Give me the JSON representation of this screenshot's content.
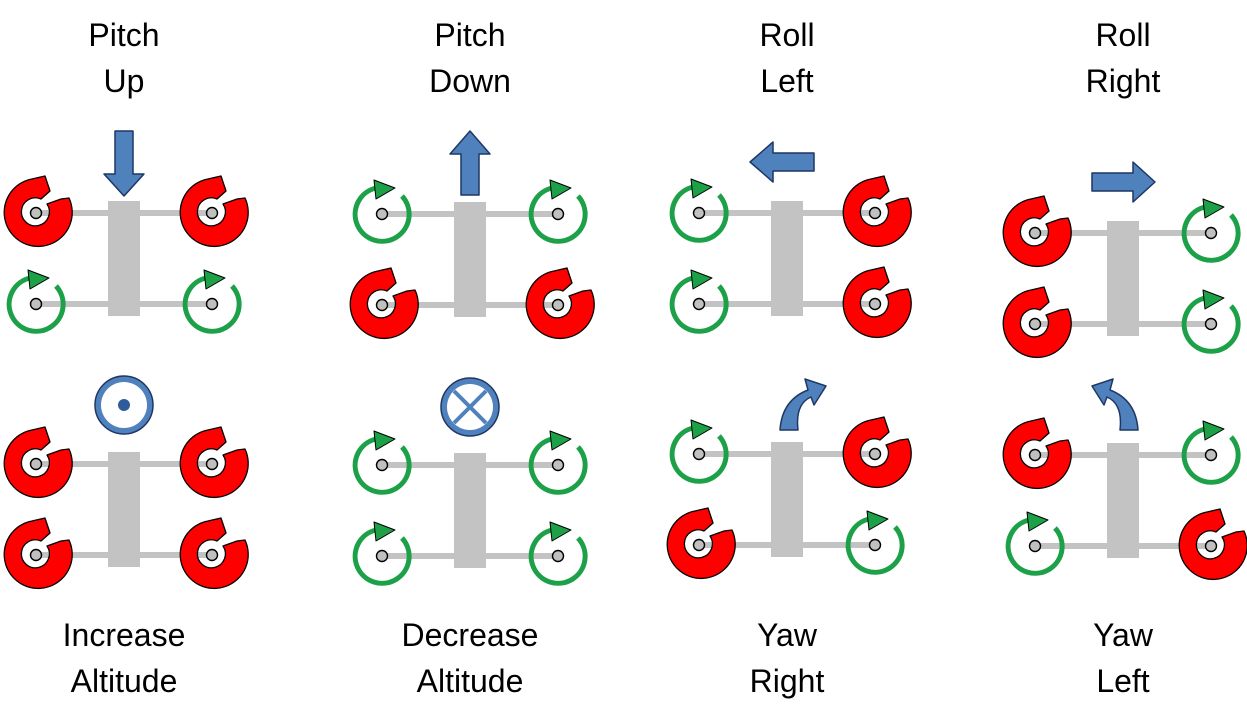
{
  "colors": {
    "high_rotor": "#ff0000",
    "low_rotor": "#1ca048",
    "frame": "#c3c3c3",
    "arrow": "#4f81bd",
    "arrow_outline": "#1f3764",
    "hub": "#c0c0c0"
  },
  "panels": [
    {
      "id": "pitch-up",
      "label_lines": [
        "Pitch",
        "Up"
      ],
      "rotors": [
        "high",
        "high",
        "low",
        "low"
      ],
      "indicator": "arrow-down-icon"
    },
    {
      "id": "pitch-down",
      "label_lines": [
        "Pitch",
        "Down"
      ],
      "rotors": [
        "low",
        "low",
        "high",
        "high"
      ],
      "indicator": "arrow-up-icon"
    },
    {
      "id": "roll-left",
      "label_lines": [
        "Roll",
        "Left"
      ],
      "rotors": [
        "low",
        "high",
        "low",
        "high"
      ],
      "indicator": "arrow-left-icon"
    },
    {
      "id": "roll-right",
      "label_lines": [
        "Roll",
        "Right"
      ],
      "rotors": [
        "high",
        "low",
        "high",
        "low"
      ],
      "indicator": "arrow-right-icon"
    },
    {
      "id": "increase-altitude",
      "label_lines": [
        "Increase",
        "Altitude"
      ],
      "rotors": [
        "high",
        "high",
        "high",
        "high"
      ],
      "indicator": "out-of-page-icon"
    },
    {
      "id": "decrease-altitude",
      "label_lines": [
        "Decrease",
        "Altitude"
      ],
      "rotors": [
        "low",
        "low",
        "low",
        "low"
      ],
      "indicator": "into-page-icon"
    },
    {
      "id": "yaw-right",
      "label_lines": [
        "Yaw",
        "Right"
      ],
      "rotors": [
        "low",
        "high",
        "high",
        "low"
      ],
      "indicator": "curved-arrow-right-icon"
    },
    {
      "id": "yaw-left",
      "label_lines": [
        "Yaw",
        "Left"
      ],
      "rotors": [
        "high",
        "low",
        "low",
        "high"
      ],
      "indicator": "curved-arrow-left-icon"
    }
  ]
}
